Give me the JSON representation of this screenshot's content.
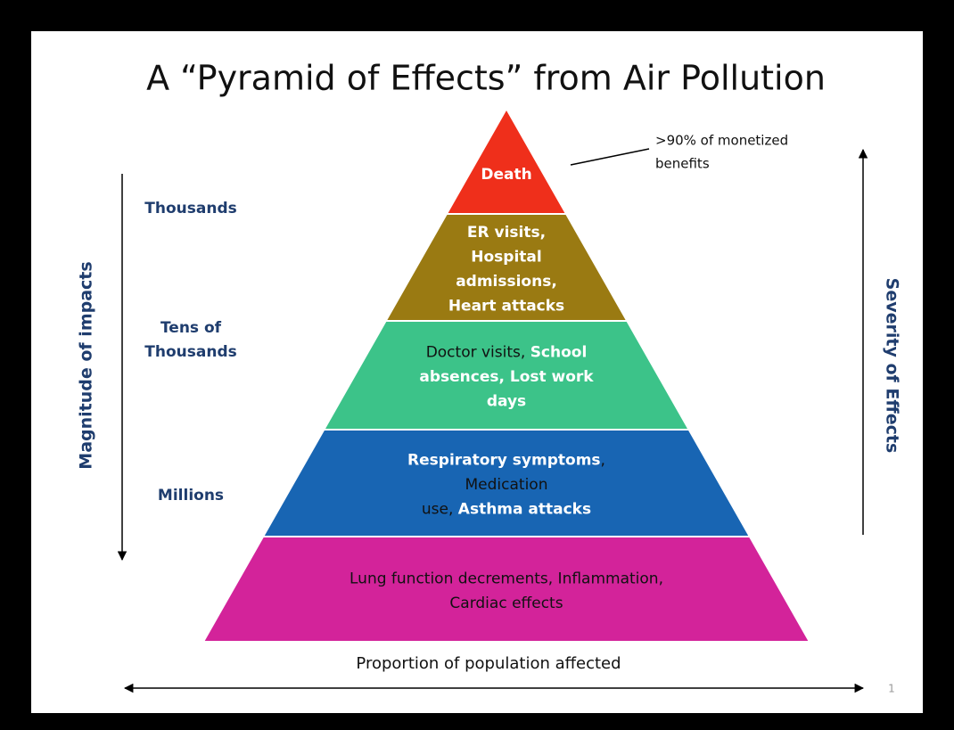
{
  "title": "A “Pyramid of Effects” from Air Pollution",
  "annotation": {
    "lines": [
      ">90% of monetized",
      "benefits"
    ]
  },
  "left_axis_label": "Magnitude of impacts",
  "right_axis_label": "Severity of Effects",
  "bottom_axis_label": "Proportion of population affected",
  "page_number": "1",
  "magnitude_labels": [
    {
      "lines": [
        "Thousands"
      ]
    },
    {
      "lines": [
        "Tens of",
        "Thousands"
      ]
    },
    {
      "lines": [
        "Millions"
      ]
    }
  ],
  "levels": [
    {
      "color": "#ef2f1b",
      "lines": [
        [
          {
            "text": "Death",
            "bold": true
          }
        ]
      ]
    },
    {
      "color": "#9a7a12",
      "lines": [
        [
          {
            "text": "ER visits,",
            "bold": true
          }
        ],
        [
          {
            "text": "Hospital",
            "bold": true
          }
        ],
        [
          {
            "text": "admissions,",
            "bold": true
          }
        ],
        [
          {
            "text": "Heart attacks",
            "bold": true
          }
        ]
      ]
    },
    {
      "color": "#3cc389",
      "lines": [
        [
          {
            "text": "Doctor visits, ",
            "bold": false
          },
          {
            "text": "School",
            "bold": true
          }
        ],
        [
          {
            "text": "absences,  Lost work",
            "bold": true
          }
        ],
        [
          {
            "text": "days",
            "bold": true
          }
        ]
      ]
    },
    {
      "color": "#1865b3",
      "lines": [
        [
          {
            "text": "Respiratory symptoms",
            "bold": true
          },
          {
            "text": ",",
            "bold": false
          }
        ],
        [
          {
            "text": "Medication",
            "bold": false
          }
        ],
        [
          {
            "text": "use,  ",
            "bold": false
          },
          {
            "text": "Asthma attacks",
            "bold": true
          }
        ]
      ]
    },
    {
      "color": "#d3239a",
      "lines": [
        [
          {
            "text": "Lung function decrements, Inflammation,",
            "bold": false
          }
        ],
        [
          {
            "text": "Cardiac effects",
            "bold": false
          }
        ]
      ]
    }
  ]
}
